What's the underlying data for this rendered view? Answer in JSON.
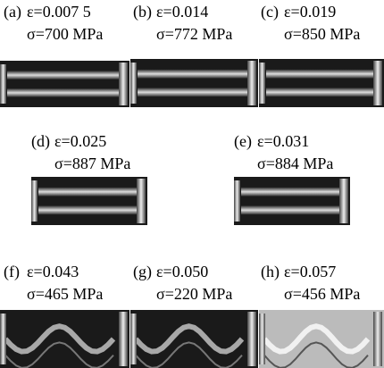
{
  "panels": [
    {
      "label": "(a)",
      "strain": "ε=0.007 5",
      "stress": "σ=700 MPa"
    },
    {
      "label": "(b)",
      "strain": "ε=0.014",
      "stress": "σ=772 MPa"
    },
    {
      "label": "(c)",
      "strain": "ε=0.019",
      "stress": "σ=850 MPa"
    },
    {
      "label": "(d)",
      "strain": "ε=0.025",
      "stress": "σ=887 MPa"
    },
    {
      "label": "(e)",
      "strain": "ε=0.031",
      "stress": "σ=884 MPa"
    },
    {
      "label": "(f)",
      "strain": "ε=0.043",
      "stress": "σ=465 MPa"
    },
    {
      "label": "(g)",
      "strain": "ε=0.050",
      "stress": "σ=220 MPa"
    },
    {
      "label": "(h)",
      "strain": "ε=0.057",
      "stress": "σ=456 MPa"
    }
  ]
}
